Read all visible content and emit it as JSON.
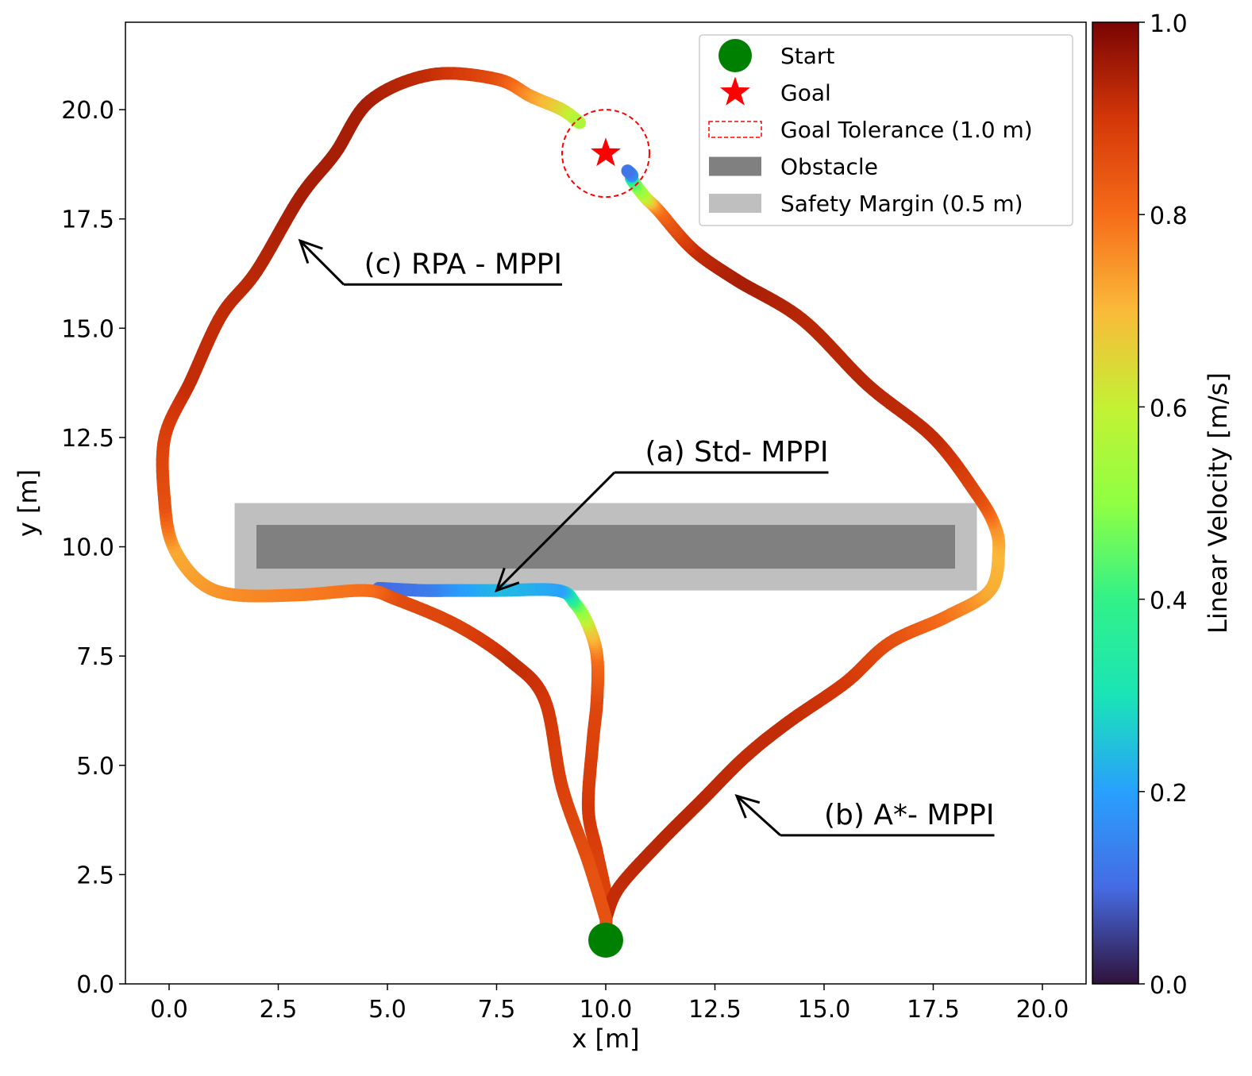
{
  "chart_data": {
    "type": "line",
    "xlabel": "x [m]",
    "ylabel": "y [m]",
    "xlim": [
      -1.0,
      21.0
    ],
    "ylim": [
      0.0,
      22.0
    ],
    "xticks": [
      0.0,
      2.5,
      5.0,
      7.5,
      10.0,
      12.5,
      15.0,
      17.5,
      20.0
    ],
    "yticks": [
      0.0,
      2.5,
      5.0,
      7.5,
      10.0,
      12.5,
      15.0,
      17.5,
      20.0
    ],
    "xtick_labels": [
      "0.0",
      "2.5",
      "5.0",
      "7.5",
      "10.0",
      "12.5",
      "15.0",
      "17.5",
      "20.0"
    ],
    "ytick_labels": [
      "0.0",
      "2.5",
      "5.0",
      "7.5",
      "10.0",
      "12.5",
      "15.0",
      "17.5",
      "20.0"
    ],
    "grid": false,
    "legend_position": "top-right",
    "colorbar": {
      "label": "Linear Velocity [m/s]",
      "range": [
        0.0,
        1.0
      ],
      "ticks": [
        0.0,
        0.2,
        0.4,
        0.6,
        0.8,
        1.0
      ],
      "tick_labels": [
        "0.0",
        "0.2",
        "0.4",
        "0.6",
        "0.8",
        "1.0"
      ],
      "colormap": "turbo"
    },
    "start": {
      "x": 10.0,
      "y": 1.0,
      "label": "Start",
      "color": "#008000"
    },
    "goal": {
      "x": 10.0,
      "y": 19.0,
      "label": "Goal",
      "color": "#ff0000"
    },
    "goal_tolerance": {
      "radius": 1.0,
      "label": "Goal Tolerance (1.0 m)",
      "color": "#ff0000"
    },
    "obstacle": {
      "x_range": [
        2.0,
        18.0
      ],
      "y_range": [
        9.5,
        10.5
      ],
      "label": "Obstacle",
      "color": "#808080"
    },
    "safety_margin": {
      "x_range": [
        1.5,
        18.5
      ],
      "y_range": [
        9.0,
        11.0
      ],
      "label": "Safety Margin (0.5 m)",
      "color": "#bfbfbf"
    },
    "series": [
      {
        "name": "(a) Std- MPPI",
        "points": [
          [
            10.0,
            1.2,
            0.85
          ],
          [
            10.0,
            2.0,
            0.88
          ],
          [
            9.8,
            3.0,
            0.88
          ],
          [
            9.6,
            4.0,
            0.9
          ],
          [
            9.7,
            5.5,
            0.88
          ],
          [
            9.8,
            6.5,
            0.87
          ],
          [
            9.8,
            7.5,
            0.8
          ],
          [
            9.6,
            8.2,
            0.65
          ],
          [
            9.3,
            8.7,
            0.45
          ],
          [
            8.9,
            9.0,
            0.2
          ],
          [
            7.5,
            9.0,
            0.24
          ],
          [
            6.5,
            9.0,
            0.19
          ],
          [
            5.8,
            9.0,
            0.13
          ],
          [
            4.8,
            9.05,
            0.1
          ]
        ]
      },
      {
        "name": "(b) A*- MPPI",
        "points": [
          [
            10.0,
            1.5,
            0.92
          ],
          [
            10.3,
            2.2,
            0.92
          ],
          [
            11.2,
            3.2,
            0.93
          ],
          [
            12.2,
            4.2,
            0.93
          ],
          [
            13.2,
            5.2,
            0.92
          ],
          [
            14.2,
            6.0,
            0.92
          ],
          [
            15.5,
            6.9,
            0.9
          ],
          [
            16.5,
            7.8,
            0.86
          ],
          [
            17.8,
            8.4,
            0.8
          ],
          [
            18.8,
            9.0,
            0.72
          ],
          [
            19.0,
            9.9,
            0.7
          ],
          [
            18.9,
            10.5,
            0.75
          ],
          [
            18.5,
            11.2,
            0.86
          ],
          [
            17.5,
            12.5,
            0.92
          ],
          [
            16.0,
            13.7,
            0.93
          ],
          [
            14.5,
            15.2,
            0.93
          ],
          [
            13.0,
            16.1,
            0.95
          ],
          [
            12.0,
            16.8,
            0.92
          ],
          [
            11.2,
            17.7,
            0.8
          ],
          [
            10.9,
            18.0,
            0.62
          ],
          [
            10.6,
            18.4,
            0.4
          ],
          [
            10.6,
            18.5,
            0.18
          ],
          [
            10.5,
            18.6,
            0.12
          ]
        ]
      },
      {
        "name": "(c) RPA - MPPI",
        "points": [
          [
            10.0,
            1.5,
            0.85
          ],
          [
            9.6,
            2.8,
            0.85
          ],
          [
            9.0,
            4.5,
            0.88
          ],
          [
            8.6,
            6.5,
            0.9
          ],
          [
            7.8,
            7.4,
            0.92
          ],
          [
            6.6,
            8.2,
            0.88
          ],
          [
            5.2,
            8.8,
            0.86
          ],
          [
            4.5,
            9.0,
            0.8
          ],
          [
            3.0,
            8.9,
            0.78
          ],
          [
            1.5,
            8.9,
            0.76
          ],
          [
            0.7,
            9.2,
            0.74
          ],
          [
            0.1,
            10.0,
            0.72
          ],
          [
            -0.1,
            11.0,
            0.85
          ],
          [
            -0.1,
            12.5,
            0.88
          ],
          [
            0.5,
            13.8,
            0.92
          ],
          [
            1.2,
            15.3,
            0.92
          ],
          [
            2.0,
            16.3,
            0.93
          ],
          [
            3.0,
            18.0,
            0.95
          ],
          [
            3.8,
            19.0,
            0.95
          ],
          [
            4.6,
            20.2,
            0.95
          ],
          [
            6.0,
            20.8,
            0.92
          ],
          [
            7.5,
            20.7,
            0.86
          ],
          [
            8.3,
            20.3,
            0.75
          ],
          [
            9.0,
            20.0,
            0.65
          ],
          [
            9.4,
            19.7,
            0.55
          ]
        ]
      }
    ],
    "annotations": [
      {
        "text": "(a) Std- MPPI",
        "target": [
          7.5,
          9.0
        ],
        "underline_x": [
          10.2,
          15.1
        ],
        "underline_y": 11.7
      },
      {
        "text": "(b) A*- MPPI",
        "target": [
          13.0,
          4.3
        ],
        "underline_x": [
          14.0,
          18.9
        ],
        "underline_y": 3.4
      },
      {
        "text": "(c) RPA - MPPI",
        "target": [
          3.0,
          17.0
        ],
        "underline_x": [
          4.0,
          9.0
        ],
        "underline_y": 16.0
      }
    ]
  }
}
